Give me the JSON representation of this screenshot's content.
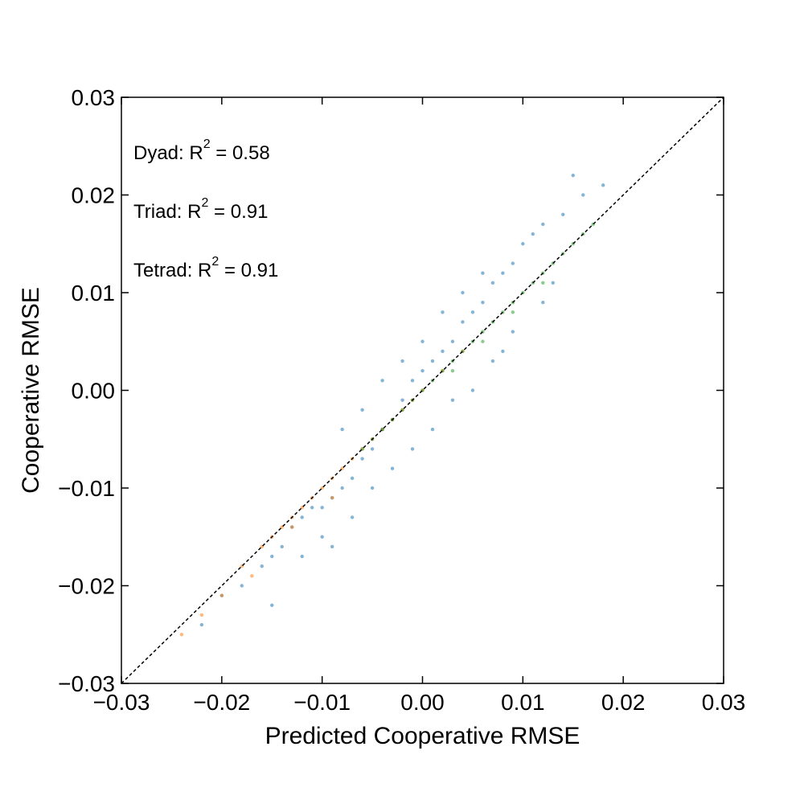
{
  "chart_data": {
    "type": "scatter",
    "title": "",
    "xlabel": "Predicted Cooperative RMSE",
    "ylabel": "Cooperative RMSE",
    "xlim": [
      -0.03,
      0.03
    ],
    "ylim": [
      -0.03,
      0.03
    ],
    "xticks": [
      -0.03,
      -0.02,
      -0.01,
      0.0,
      0.01,
      0.02,
      0.03
    ],
    "yticks": [
      -0.03,
      -0.02,
      -0.01,
      0.0,
      0.01,
      0.02,
      0.03
    ],
    "xtick_labels": [
      "−0.03",
      "−0.02",
      "−0.01",
      "0.00",
      "0.01",
      "0.02",
      "0.03"
    ],
    "ytick_labels": [
      "−0.03",
      "−0.02",
      "−0.01",
      "0.00",
      "0.01",
      "0.02",
      "0.03"
    ],
    "grid": false,
    "reference_line": {
      "style": "dashed",
      "color": "#000000",
      "x": [
        -0.03,
        0.03
      ],
      "y": [
        -0.03,
        0.03
      ]
    },
    "annotations": [
      {
        "label": "Dyad: R",
        "sup": "2",
        "value": " = 0.58"
      },
      {
        "label": "Triad: R",
        "sup": "2",
        "value": " = 0.91"
      },
      {
        "label": "Tetrad: R",
        "sup": "2",
        "value": " = 0.91"
      }
    ],
    "series": [
      {
        "color": "#1f77b4",
        "x": [
          -0.022,
          -0.02,
          -0.018,
          -0.016,
          -0.015,
          -0.014,
          -0.013,
          -0.012,
          -0.011,
          -0.01,
          -0.009,
          -0.008,
          -0.007,
          -0.006,
          -0.005,
          -0.004,
          -0.003,
          -0.002,
          -0.001,
          0.0,
          0.001,
          0.002,
          0.003,
          0.004,
          0.005,
          0.006,
          0.007,
          0.008,
          0.009,
          0.01,
          0.011,
          0.012,
          0.014,
          0.016,
          -0.008,
          -0.006,
          -0.004,
          -0.002,
          0.0,
          0.002,
          0.004,
          0.006,
          -0.01,
          -0.005,
          0.003,
          0.008,
          0.012,
          -0.012,
          -0.003,
          0.001,
          0.005,
          0.009,
          -0.007,
          -0.001,
          0.007,
          0.013,
          -0.015,
          -0.009,
          0.015,
          0.018
        ],
        "y": [
          -0.024,
          -0.021,
          -0.02,
          -0.018,
          -0.017,
          -0.016,
          -0.014,
          -0.013,
          -0.012,
          -0.012,
          -0.011,
          -0.01,
          -0.009,
          -0.007,
          -0.006,
          -0.004,
          -0.003,
          -0.001,
          0.001,
          0.002,
          0.003,
          0.004,
          0.005,
          0.007,
          0.008,
          0.009,
          0.011,
          0.012,
          0.013,
          0.015,
          0.016,
          0.017,
          0.018,
          0.02,
          -0.004,
          -0.002,
          0.001,
          0.003,
          0.005,
          0.008,
          0.01,
          0.012,
          -0.015,
          -0.01,
          -0.001,
          0.004,
          0.009,
          -0.017,
          -0.008,
          -0.004,
          0.0,
          0.006,
          -0.013,
          -0.006,
          0.003,
          0.011,
          -0.022,
          -0.016,
          0.022,
          0.021
        ]
      },
      {
        "color": "#ff7f0e",
        "x": [
          -0.024,
          -0.022,
          -0.02,
          -0.018,
          -0.016,
          -0.015,
          -0.014,
          -0.013,
          -0.012,
          -0.011,
          -0.01,
          -0.009,
          -0.008,
          -0.007,
          -0.006,
          -0.005,
          -0.004,
          -0.003,
          -0.002,
          -0.001,
          0.0,
          0.002,
          0.004,
          -0.017,
          -0.013,
          -0.009
        ],
        "y": [
          -0.025,
          -0.023,
          -0.021,
          -0.018,
          -0.016,
          -0.015,
          -0.014,
          -0.013,
          -0.012,
          -0.011,
          -0.01,
          -0.009,
          -0.008,
          -0.007,
          -0.006,
          -0.005,
          -0.004,
          -0.003,
          -0.002,
          -0.001,
          0.0,
          0.002,
          0.004,
          -0.019,
          -0.014,
          -0.011
        ]
      },
      {
        "color": "#2ca02c",
        "x": [
          -0.006,
          -0.005,
          -0.004,
          -0.003,
          -0.002,
          -0.001,
          0.0,
          0.001,
          0.002,
          0.003,
          0.004,
          0.005,
          0.006,
          0.007,
          0.008,
          0.009,
          0.01,
          0.011,
          0.012,
          0.013,
          0.014,
          0.015,
          0.016,
          0.017,
          0.003,
          0.006,
          0.009,
          0.012
        ],
        "y": [
          -0.006,
          -0.005,
          -0.004,
          -0.003,
          -0.002,
          -0.001,
          0.0,
          0.001,
          0.002,
          0.003,
          0.004,
          0.005,
          0.006,
          0.007,
          0.008,
          0.009,
          0.01,
          0.011,
          0.012,
          0.013,
          0.014,
          0.015,
          0.016,
          0.017,
          0.002,
          0.005,
          0.008,
          0.011
        ]
      }
    ]
  }
}
